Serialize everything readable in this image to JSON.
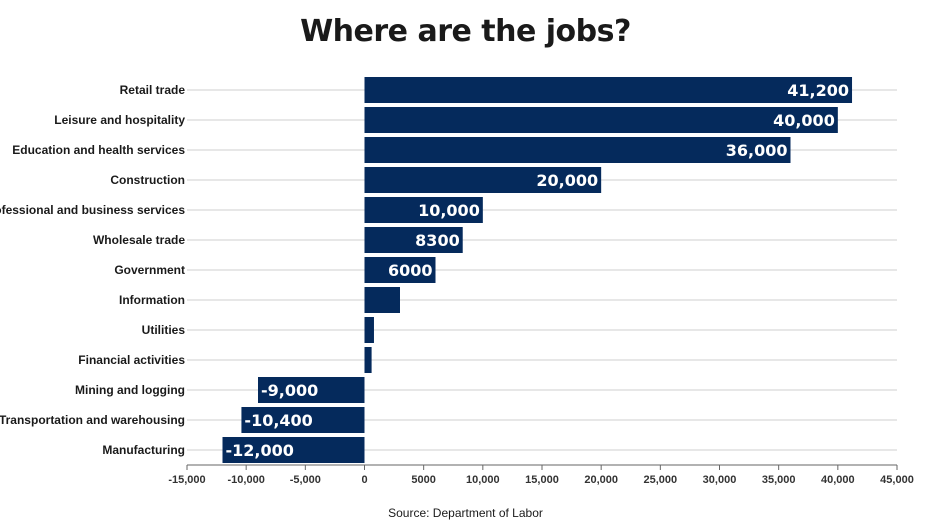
{
  "chart_data": {
    "type": "bar",
    "orientation": "horizontal",
    "title": "Where are the jobs?",
    "source": "Source: Department of Labor",
    "categories": [
      "Retail trade",
      "Leisure and hospitality",
      "Education and health services",
      "Construction",
      "Professional and business services",
      "Wholesale trade",
      "Government",
      "Information",
      "Utilities",
      "Financial activities",
      "Mining and logging",
      "Transportation and warehousing",
      "Manufacturing"
    ],
    "values": [
      41200,
      40000,
      36000,
      20000,
      10000,
      8300,
      6000,
      3000,
      800,
      600,
      -9000,
      -10400,
      -12000
    ],
    "data_labels": [
      "41,200",
      "40,000",
      "36,000",
      "20,000",
      "10,000",
      "8300",
      "6000",
      "",
      "",
      "",
      "-9,000",
      "-10,400",
      "-12,000"
    ],
    "xlim": [
      -15000,
      45000
    ],
    "xticks": [
      -15000,
      -10000,
      -5000,
      0,
      5000,
      10000,
      15000,
      20000,
      25000,
      30000,
      35000,
      40000,
      45000
    ],
    "xtick_labels": [
      "-15,000",
      "-10,000",
      "-5,000",
      "0",
      "5000",
      "10,000",
      "15,000",
      "20,000",
      "25,000",
      "30,000",
      "35,000",
      "40,000",
      "45,000"
    ],
    "grid": true,
    "bar_color": "#052a5c"
  }
}
